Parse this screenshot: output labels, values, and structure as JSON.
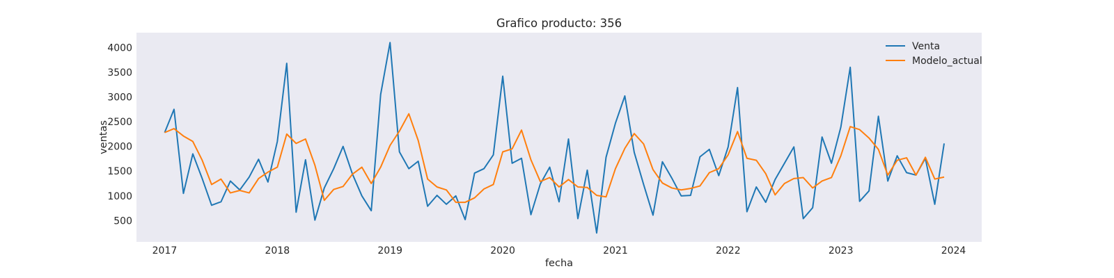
{
  "chart_data": {
    "type": "line",
    "title": "Grafico producto: 356",
    "xlabel": "fecha",
    "ylabel": "ventas",
    "x_start": "2017-01",
    "x_ticks": [
      "2017",
      "2018",
      "2019",
      "2020",
      "2021",
      "2022",
      "2023",
      "2024"
    ],
    "y_ticks": [
      500,
      1000,
      1500,
      2000,
      2500,
      3000,
      3500,
      4000
    ],
    "xlim": [
      "2016-10",
      "2024-04"
    ],
    "ylim": [
      70,
      4300
    ],
    "grid": false,
    "legend_position": "top-right",
    "series": [
      {
        "name": "Venta",
        "color": "#1f77b4",
        "values": [
          2280,
          2750,
          1050,
          1850,
          1350,
          810,
          880,
          1300,
          1120,
          1380,
          1740,
          1280,
          2100,
          3680,
          670,
          1730,
          510,
          1160,
          1550,
          2000,
          1440,
          1000,
          700,
          3050,
          4100,
          1890,
          1550,
          1700,
          790,
          1010,
          830,
          1000,
          520,
          1460,
          1550,
          1830,
          3420,
          1660,
          1760,
          620,
          1240,
          1580,
          880,
          2150,
          540,
          1520,
          250,
          1780,
          2470,
          3020,
          1880,
          1230,
          610,
          1690,
          1360,
          1000,
          1010,
          1790,
          1940,
          1410,
          1990,
          3190,
          680,
          1180,
          870,
          1330,
          1660,
          1990,
          540,
          760,
          2190,
          1660,
          2390,
          3600,
          890,
          1100,
          2610,
          1300,
          1810,
          1470,
          1420,
          1760,
          830,
          2060
        ]
      },
      {
        "name": "Modelo_actual",
        "color": "#ff7f0e",
        "values": [
          2280,
          2360,
          2210,
          2100,
          1720,
          1230,
          1340,
          1060,
          1110,
          1060,
          1350,
          1480,
          1580,
          2250,
          2060,
          2150,
          1620,
          910,
          1130,
          1190,
          1440,
          1580,
          1250,
          1580,
          2020,
          2310,
          2660,
          2120,
          1340,
          1180,
          1120,
          870,
          870,
          960,
          1140,
          1230,
          1890,
          1950,
          2330,
          1730,
          1290,
          1370,
          1180,
          1330,
          1180,
          1170,
          1010,
          980,
          1550,
          1960,
          2260,
          2050,
          1530,
          1260,
          1160,
          1120,
          1150,
          1200,
          1470,
          1550,
          1830,
          2300,
          1760,
          1720,
          1450,
          1020,
          1250,
          1350,
          1370,
          1160,
          1300,
          1370,
          1810,
          2400,
          2340,
          2170,
          1940,
          1420,
          1720,
          1770,
          1420,
          1780,
          1340,
          1380
        ]
      }
    ]
  }
}
